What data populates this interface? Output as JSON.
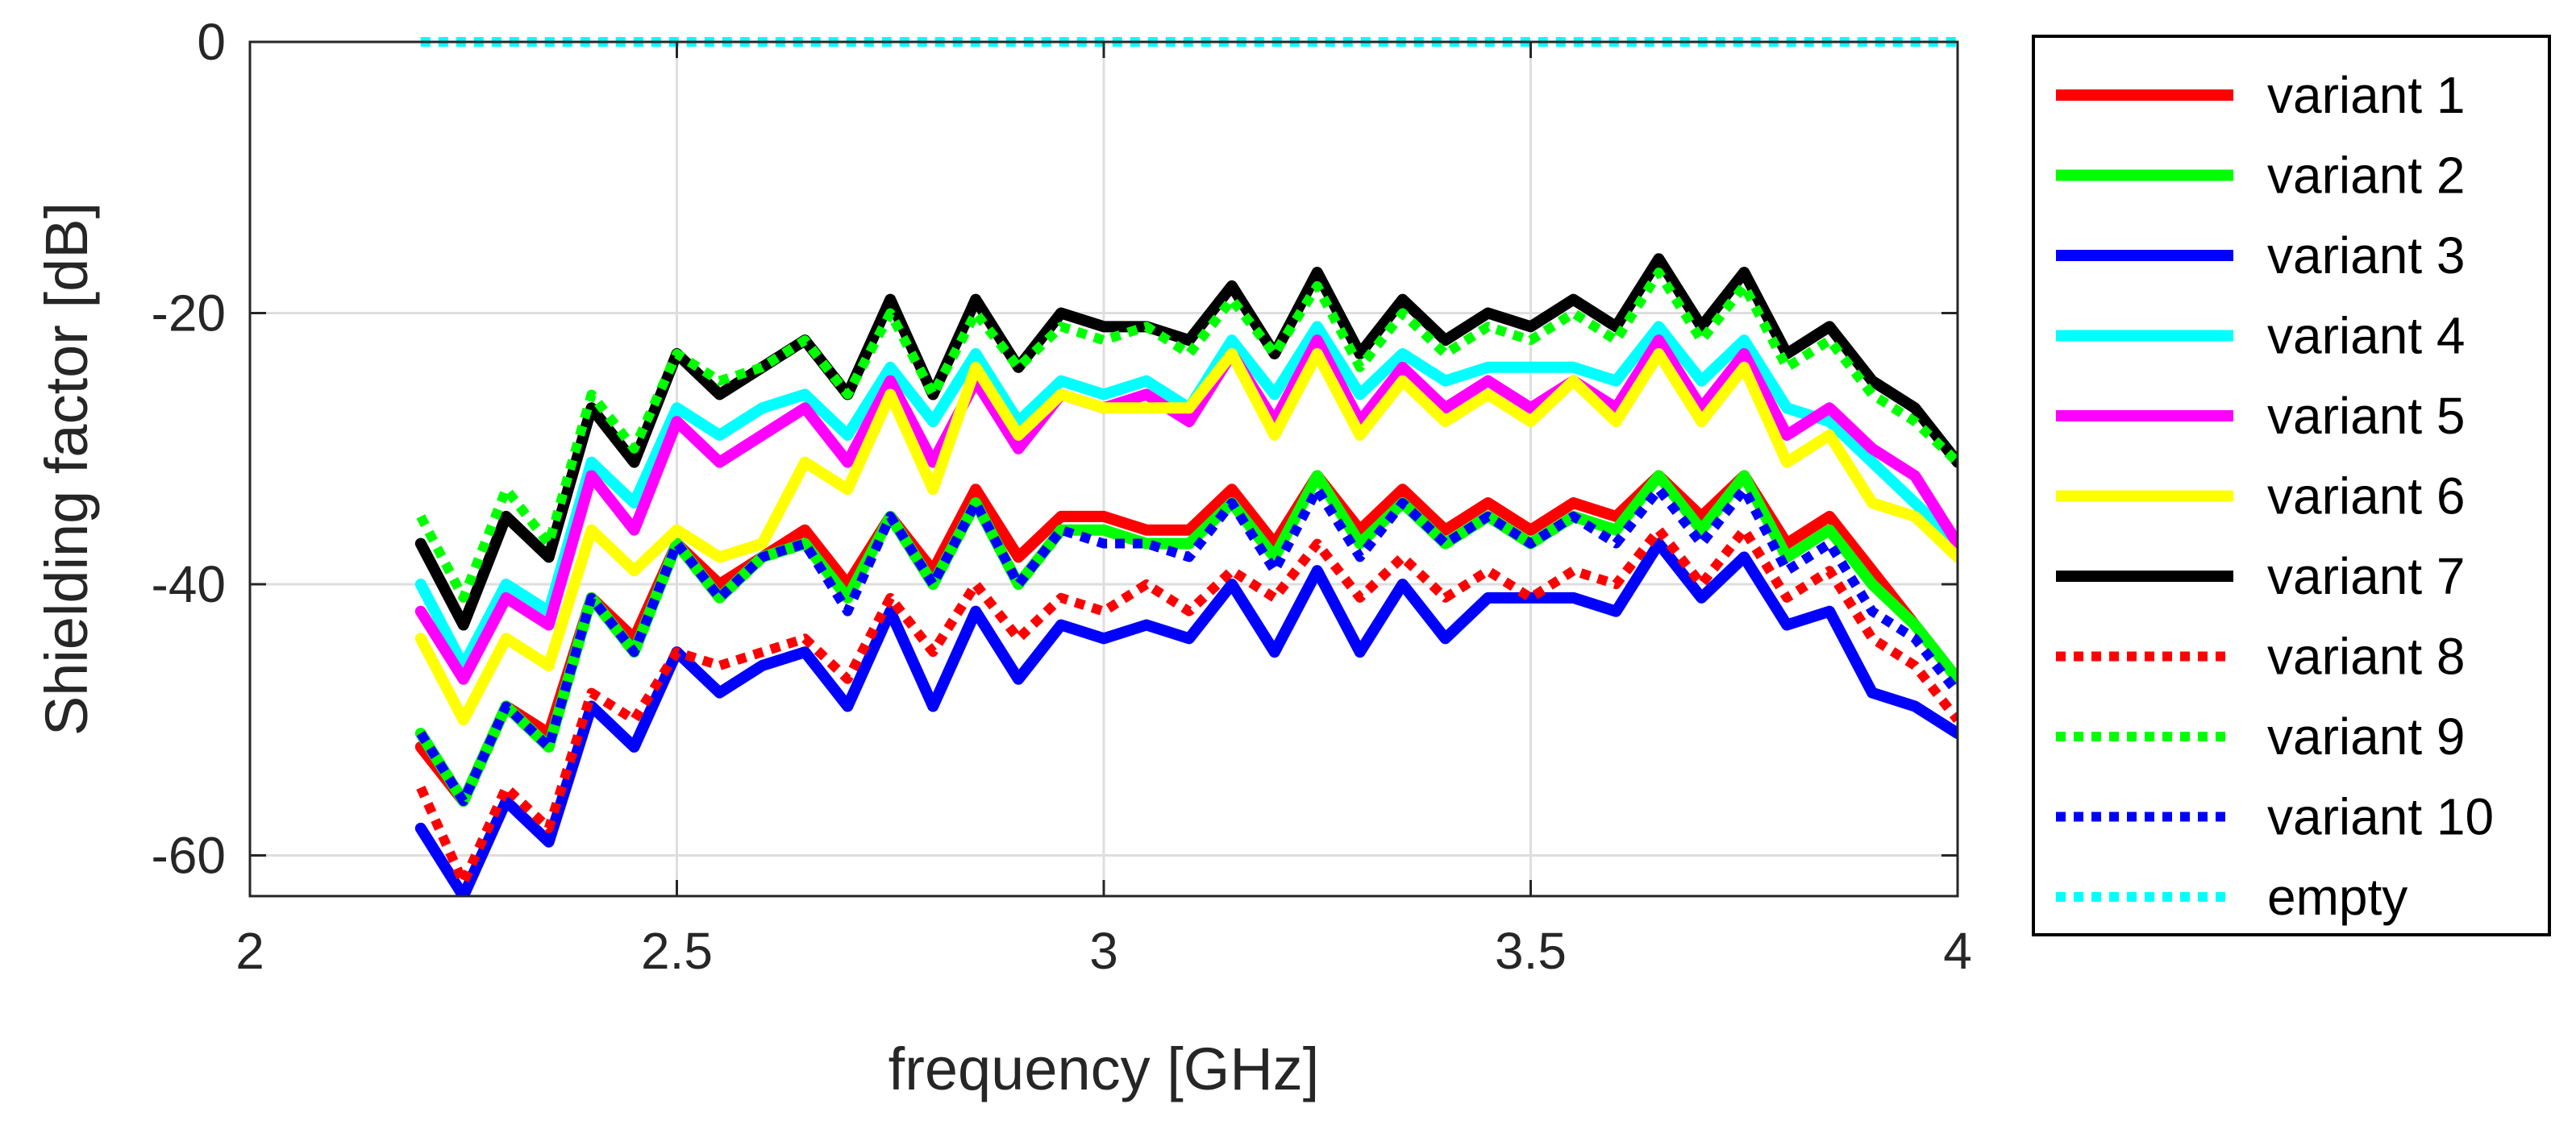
{
  "chart_data": {
    "type": "line",
    "xlabel": "frequency [GHz]",
    "ylabel": "Shielding factor [dB]",
    "xlim": [
      2,
      4
    ],
    "ylim": [
      -63,
      0
    ],
    "xticks": [
      2,
      2.5,
      3,
      3.5,
      4
    ],
    "xtick_labels": [
      "2",
      "2.5",
      "3",
      "3.5",
      "4"
    ],
    "yticks": [
      0,
      -20,
      -40,
      -60
    ],
    "ytick_labels": [
      "0",
      "-20",
      "-40",
      "-60"
    ],
    "grid": true,
    "legend_position": "outside-right",
    "x": [
      2.2,
      2.25,
      2.3,
      2.35,
      2.4,
      2.45,
      2.5,
      2.55,
      2.6,
      2.65,
      2.7,
      2.75,
      2.8,
      2.85,
      2.9,
      2.95,
      3.0,
      3.05,
      3.1,
      3.15,
      3.2,
      3.25,
      3.3,
      3.35,
      3.4,
      3.45,
      3.5,
      3.55,
      3.6,
      3.65,
      3.7,
      3.75,
      3.8,
      3.85,
      3.9,
      3.95,
      4.0
    ],
    "series": [
      {
        "name": "variant 1",
        "color": "#ff0000",
        "style": "solid",
        "values": [
          -52,
          -56,
          -49,
          -51,
          -41,
          -44,
          -37,
          -40,
          -38,
          -36,
          -40,
          -35,
          -39,
          -33,
          -38,
          -35,
          -35,
          -36,
          -36,
          -33,
          -37,
          -32,
          -36,
          -33,
          -36,
          -34,
          -36,
          -34,
          -35,
          -32,
          -35,
          -32,
          -37,
          -35,
          -39,
          -43,
          -47
        ]
      },
      {
        "name": "variant 2",
        "color": "#00ff00",
        "style": "solid",
        "values": [
          -51,
          -56,
          -49,
          -52,
          -41,
          -45,
          -37,
          -41,
          -38,
          -37,
          -41,
          -35,
          -40,
          -34,
          -40,
          -36,
          -36,
          -37,
          -37,
          -34,
          -38,
          -32,
          -37,
          -34,
          -37,
          -35,
          -37,
          -35,
          -36,
          -32,
          -36,
          -32,
          -38,
          -36,
          -40,
          -43,
          -47
        ]
      },
      {
        "name": "variant 3",
        "color": "#0000ff",
        "style": "solid",
        "values": [
          -58,
          -63,
          -56,
          -59,
          -49,
          -52,
          -45,
          -48,
          -46,
          -45,
          -49,
          -42,
          -49,
          -42,
          -47,
          -43,
          -44,
          -43,
          -44,
          -40,
          -45,
          -39,
          -45,
          -40,
          -44,
          -41,
          -41,
          -41,
          -42,
          -37,
          -41,
          -38,
          -43,
          -42,
          -48,
          -49,
          -51
        ]
      },
      {
        "name": "variant 4",
        "color": "#00ffff",
        "style": "solid",
        "values": [
          -40,
          -46,
          -40,
          -42,
          -31,
          -34,
          -27,
          -29,
          -27,
          -26,
          -29,
          -24,
          -28,
          -23,
          -28,
          -25,
          -26,
          -25,
          -27,
          -22,
          -26,
          -21,
          -26,
          -23,
          -25,
          -24,
          -24,
          -24,
          -25,
          -21,
          -25,
          -22,
          -27,
          -28,
          -31,
          -34,
          -37
        ]
      },
      {
        "name": "variant 5",
        "color": "#ff00ff",
        "style": "solid",
        "values": [
          -42,
          -47,
          -41,
          -43,
          -32,
          -36,
          -28,
          -31,
          -29,
          -27,
          -31,
          -25,
          -31,
          -25,
          -30,
          -26,
          -27,
          -26,
          -28,
          -23,
          -28,
          -22,
          -28,
          -24,
          -27,
          -25,
          -27,
          -25,
          -27,
          -22,
          -27,
          -23,
          -29,
          -27,
          -30,
          -32,
          -37
        ]
      },
      {
        "name": "variant 6",
        "color": "#ffff00",
        "style": "solid",
        "values": [
          -44,
          -50,
          -44,
          -46,
          -36,
          -39,
          -36,
          -38,
          -37,
          -31,
          -33,
          -26,
          -33,
          -24,
          -29,
          -26,
          -27,
          -27,
          -27,
          -23,
          -29,
          -23,
          -29,
          -25,
          -28,
          -26,
          -28,
          -25,
          -28,
          -23,
          -28,
          -24,
          -31,
          -29,
          -34,
          -35,
          -38
        ]
      },
      {
        "name": "variant 7",
        "color": "#000000",
        "style": "solid",
        "values": [
          -37,
          -43,
          -35,
          -38,
          -27,
          -31,
          -23,
          -26,
          -24,
          -22,
          -26,
          -19,
          -26,
          -19,
          -24,
          -20,
          -21,
          -21,
          -22,
          -18,
          -23,
          -17,
          -23,
          -19,
          -22,
          -20,
          -21,
          -19,
          -21,
          -16,
          -21,
          -17,
          -23,
          -21,
          -25,
          -27,
          -31
        ]
      },
      {
        "name": "variant 8",
        "color": "#ff0000",
        "style": "dotted",
        "values": [
          -55,
          -62,
          -55,
          -58,
          -48,
          -50,
          -45,
          -46,
          -45,
          -44,
          -47,
          -41,
          -45,
          -40,
          -44,
          -41,
          -42,
          -40,
          -42,
          -39,
          -41,
          -37,
          -41,
          -38,
          -41,
          -39,
          -41,
          -39,
          -40,
          -36,
          -40,
          -36,
          -41,
          -39,
          -44,
          -46,
          -50
        ]
      },
      {
        "name": "variant 9",
        "color": "#00ff00",
        "style": "dotted",
        "values": [
          -35,
          -41,
          -33,
          -37,
          -26,
          -30,
          -23,
          -25,
          -24,
          -22,
          -26,
          -20,
          -26,
          -20,
          -24,
          -21,
          -22,
          -21,
          -23,
          -19,
          -23,
          -18,
          -24,
          -20,
          -23,
          -21,
          -22,
          -20,
          -22,
          -17,
          -22,
          -18,
          -24,
          -22,
          -26,
          -28,
          -31
        ]
      },
      {
        "name": "variant 10",
        "color": "#0000ff",
        "style": "dotted",
        "values": [
          -51,
          -56,
          -49,
          -52,
          -41,
          -45,
          -37,
          -41,
          -38,
          -37,
          -42,
          -35,
          -40,
          -34,
          -40,
          -36,
          -37,
          -37,
          -38,
          -34,
          -39,
          -33,
          -38,
          -34,
          -37,
          -35,
          -37,
          -35,
          -37,
          -33,
          -37,
          -33,
          -39,
          -37,
          -42,
          -44,
          -48
        ]
      },
      {
        "name": "empty",
        "color": "#00ffff",
        "style": "dotted",
        "values": [
          0,
          0,
          0,
          0,
          0,
          0,
          0,
          0,
          0,
          0,
          0,
          0,
          0,
          0,
          0,
          0,
          0,
          0,
          0,
          0,
          0,
          0,
          0,
          0,
          0,
          0,
          0,
          0,
          0,
          0,
          0,
          0,
          0,
          0,
          0,
          0,
          0
        ]
      }
    ]
  }
}
